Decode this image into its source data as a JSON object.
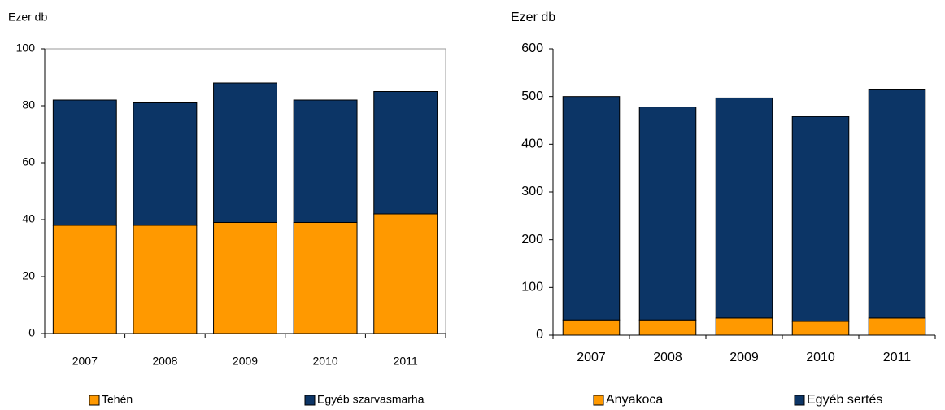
{
  "chart_data": [
    {
      "type": "stacked_bar",
      "ylabel": "Ezer db",
      "categories": [
        "2007",
        "2008",
        "2009",
        "2010",
        "2011"
      ],
      "series": [
        {
          "name": "Tehén",
          "color": "#ff9900",
          "values": [
            38,
            38,
            39,
            39,
            42
          ]
        },
        {
          "name": "Egyéb szarvasmarha",
          "color": "#0c3566",
          "values": [
            44,
            43,
            49,
            43,
            43
          ]
        }
      ],
      "ylim": [
        0,
        100
      ],
      "yticks": [
        0,
        20,
        40,
        60,
        80,
        100
      ],
      "frame": true
    },
    {
      "type": "stacked_bar",
      "ylabel": "Ezer db",
      "categories": [
        "2007",
        "2008",
        "2009",
        "2010",
        "2011"
      ],
      "series": [
        {
          "name": "Anyakoca",
          "color": "#ff9900",
          "values": [
            32,
            32,
            36,
            29,
            36
          ]
        },
        {
          "name": "Egyéb sertés",
          "color": "#0c3566",
          "values": [
            468,
            446,
            461,
            429,
            478
          ]
        }
      ],
      "ylim": [
        0,
        600
      ],
      "yticks": [
        0,
        100,
        200,
        300,
        400,
        500,
        600
      ],
      "frame": false
    }
  ]
}
